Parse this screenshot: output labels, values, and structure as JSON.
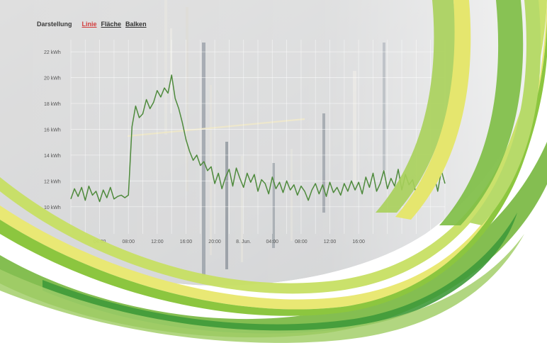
{
  "toolbar": {
    "label": "Darstellung",
    "options": [
      {
        "label": "Linie",
        "active": true
      },
      {
        "label": "Fläche",
        "active": false
      },
      {
        "label": "Balken",
        "active": false
      }
    ]
  },
  "colors": {
    "line": "#4e8a3c",
    "accent_active": "#d23c3c",
    "ribbon_dark": "#5fae3e",
    "ribbon_mid": "#8cc63f",
    "ribbon_light": "#c9e265",
    "ribbon_yellow": "#e8e870"
  },
  "chart_data": {
    "type": "line",
    "y_tick_labels": [
      "10 kWh",
      "12 kWh",
      "14 kWh",
      "16 kWh",
      "18 kWh",
      "20 kWh",
      "22 kWh"
    ],
    "y_ticks": [
      10,
      12,
      14,
      16,
      18,
      20,
      22
    ],
    "ylim": [
      9,
      22.5
    ],
    "x_tick_labels": [
      "04:00",
      "08:00",
      "12:00",
      "16:00",
      "20:00",
      "8. Jun.",
      "04:00",
      "08:00",
      "12:00",
      "16:00"
    ],
    "x_ticks": [
      4,
      8,
      12,
      16,
      20,
      24,
      28,
      32,
      36,
      40
    ],
    "xlim": [
      0,
      52
    ],
    "grid": true,
    "x": [
      0,
      0.5,
      1,
      1.5,
      2,
      2.5,
      3,
      3.5,
      4,
      4.5,
      5,
      5.5,
      6,
      6.5,
      7,
      7.5,
      8,
      8.5,
      9,
      9.5,
      10,
      10.5,
      11,
      11.5,
      12,
      12.5,
      13,
      13.5,
      14,
      14.5,
      15,
      15.5,
      16,
      16.5,
      17,
      17.5,
      18,
      18.5,
      19,
      19.5,
      20,
      20.5,
      21,
      21.5,
      22,
      22.5,
      23,
      23.5,
      24,
      24.5,
      25,
      25.5,
      26,
      26.5,
      27,
      27.5,
      28,
      28.5,
      29,
      29.5,
      30,
      30.5,
      31,
      31.5,
      32,
      32.5,
      33,
      33.5,
      34,
      34.5,
      35,
      35.5,
      36,
      36.5,
      37,
      37.5,
      38,
      38.5,
      39,
      39.5,
      40,
      40.5,
      41,
      41.5,
      42,
      42.5,
      43,
      43.5,
      44,
      44.5,
      45,
      45.5,
      46,
      46.5,
      47,
      47.5,
      48,
      48.5,
      49,
      49.5,
      50,
      50.5,
      51,
      51.5,
      52
    ],
    "y": [
      10.6,
      11.4,
      10.8,
      11.5,
      10.5,
      11.6,
      10.9,
      11.2,
      10.4,
      11.3,
      10.7,
      11.5,
      10.6,
      10.8,
      10.9,
      10.7,
      10.9,
      16.2,
      17.8,
      16.9,
      17.2,
      18.3,
      17.6,
      18.1,
      19.0,
      18.5,
      19.2,
      18.8,
      20.2,
      18.4,
      17.6,
      16.5,
      15.2,
      14.3,
      13.6,
      14.0,
      13.2,
      13.5,
      12.8,
      13.1,
      11.8,
      12.6,
      11.4,
      12.3,
      12.9,
      11.6,
      13.0,
      12.2,
      11.5,
      12.6,
      11.9,
      12.5,
      11.2,
      12.1,
      11.8,
      11.0,
      12.3,
      11.4,
      11.9,
      11.1,
      12.0,
      11.3,
      11.7,
      10.9,
      11.6,
      11.2,
      10.5,
      11.3,
      11.8,
      11.0,
      11.7,
      10.8,
      11.9,
      11.1,
      11.5,
      10.9,
      11.8,
      11.2,
      12.0,
      11.3,
      11.9,
      11.0,
      12.3,
      11.5,
      12.6,
      11.2,
      11.8,
      12.8,
      11.4,
      12.2,
      11.6,
      12.9,
      11.3,
      12.5,
      11.7,
      12.1,
      11.0,
      11.8,
      11.4,
      12.2,
      11.6,
      12.4,
      11.2,
      12.8,
      11.8
    ]
  }
}
